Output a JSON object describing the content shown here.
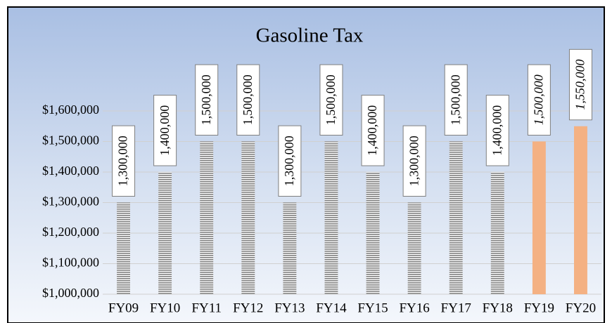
{
  "chart_data": {
    "type": "bar",
    "title": "Gasoline Tax",
    "categories": [
      "FY09",
      "FY10",
      "FY11",
      "FY12",
      "FY13",
      "FY14",
      "FY15",
      "FY16",
      "FY17",
      "FY18",
      "FY19",
      "FY20"
    ],
    "values": [
      1300000,
      1400000,
      1500000,
      1500000,
      1300000,
      1500000,
      1400000,
      1300000,
      1500000,
      1400000,
      1500000,
      1550000
    ],
    "value_labels": [
      "1,300,000",
      "1,400,000",
      "1,500,000",
      "1,500,000",
      "1,300,000",
      "1,500,000",
      "1,400,000",
      "1,300,000",
      "1,500,000",
      "1,400,000",
      "1,500,000",
      "1,550,000"
    ],
    "colors": [
      "#7f7f7f",
      "#7f7f7f",
      "#7f7f7f",
      "#7f7f7f",
      "#7f7f7f",
      "#7f7f7f",
      "#7f7f7f",
      "#7f7f7f",
      "#7f7f7f",
      "#7f7f7f",
      "#f4b183",
      "#f4b183"
    ],
    "hatched": [
      true,
      true,
      true,
      true,
      true,
      true,
      true,
      true,
      true,
      true,
      false,
      false
    ],
    "italic_labels": [
      false,
      false,
      false,
      false,
      false,
      false,
      false,
      false,
      false,
      false,
      true,
      true
    ],
    "ylim": [
      1000000,
      1600000
    ],
    "yticks": [
      {
        "value": 1000000,
        "label": "$1,000,000"
      },
      {
        "value": 1100000,
        "label": "$1,100,000"
      },
      {
        "value": 1200000,
        "label": "$1,200,000"
      },
      {
        "value": 1300000,
        "label": "$1,300,000"
      },
      {
        "value": 1400000,
        "label": "$1,400,000"
      },
      {
        "value": 1500000,
        "label": "$1,500,000"
      },
      {
        "value": 1600000,
        "label": "$1,600,000"
      }
    ],
    "grid": true
  }
}
